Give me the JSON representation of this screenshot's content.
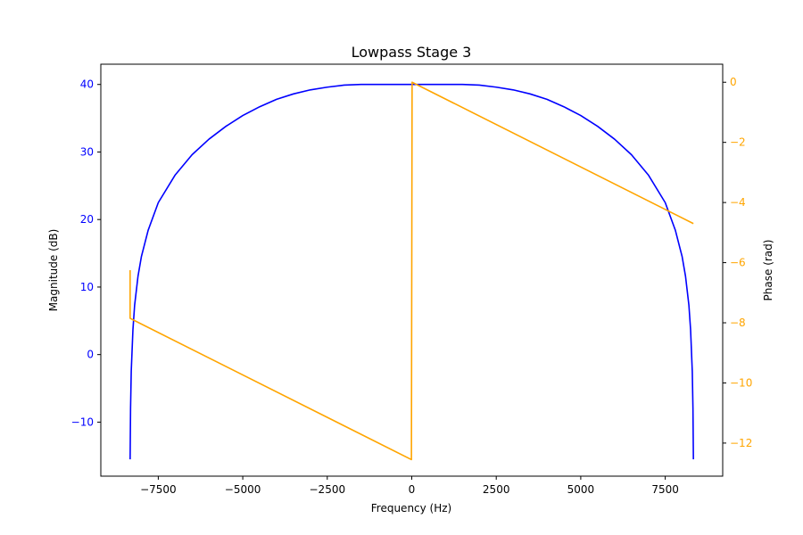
{
  "chart_data": {
    "type": "line",
    "title": "Lowpass Stage 3",
    "xlabel": "Frequency (Hz)",
    "ylabel_left": "Magnitude (dB)",
    "ylabel_right": "Phase (rad)",
    "xlim": [
      -9200,
      9200
    ],
    "ylim_left": [
      -18,
      43
    ],
    "ylim_right": [
      -13.1,
      0.6
    ],
    "x_ticks": [
      -7500,
      -5000,
      -2500,
      0,
      2500,
      5000,
      7500
    ],
    "x_tick_labels": [
      "−7500",
      "−5000",
      "−2500",
      "0",
      "2500",
      "5000",
      "7500"
    ],
    "left_ticks": [
      -10,
      0,
      10,
      20,
      30,
      40
    ],
    "left_tick_labels": [
      "−10",
      "0",
      "10",
      "20",
      "30",
      "40"
    ],
    "right_ticks": [
      -12,
      -10,
      -8,
      -6,
      -4,
      -2,
      0
    ],
    "right_tick_labels": [
      "−12",
      "−10",
      "−8",
      "−6",
      "−4",
      "−2",
      "0"
    ],
    "grid": false,
    "colors": {
      "magnitude": "#0000ff",
      "phase": "#ffa500",
      "axes": "#000000"
    },
    "series": [
      {
        "axis": "left",
        "color": "#0000ff",
        "x": [
          -8333,
          -8320,
          -8300,
          -8250,
          -8200,
          -8100,
          -8000,
          -7800,
          -7500,
          -7000,
          -6500,
          -6000,
          -5500,
          -5000,
          -4500,
          -4000,
          -3500,
          -3000,
          -2500,
          -2000,
          -1500,
          -1000,
          -500,
          0,
          500,
          1000,
          1500,
          2000,
          2500,
          3000,
          3500,
          4000,
          4500,
          5000,
          5500,
          6000,
          6500,
          7000,
          7500,
          7800,
          8000,
          8100,
          8200,
          8250,
          8300,
          8320,
          8333
        ],
        "y": [
          -15.5,
          -8.0,
          -2.5,
          3.7,
          7.3,
          11.6,
          14.5,
          18.4,
          22.5,
          26.6,
          29.6,
          31.9,
          33.8,
          35.4,
          36.7,
          37.8,
          38.6,
          39.2,
          39.6,
          39.9,
          40.0,
          40.0,
          40.0,
          40.0,
          40.0,
          40.0,
          40.0,
          39.9,
          39.6,
          39.2,
          38.6,
          37.8,
          36.7,
          35.4,
          33.8,
          31.9,
          29.6,
          26.6,
          22.5,
          18.4,
          14.5,
          11.6,
          7.3,
          3.7,
          -2.5,
          -8.0,
          -15.5
        ]
      },
      {
        "axis": "right",
        "color": "#ffa500",
        "x": [
          -8333,
          -8333,
          -8250,
          -10,
          -10,
          10,
          8333
        ],
        "y": [
          -6.25,
          -7.85,
          -7.9,
          -12.55,
          -12.55,
          0.0,
          -4.7
        ]
      }
    ]
  }
}
